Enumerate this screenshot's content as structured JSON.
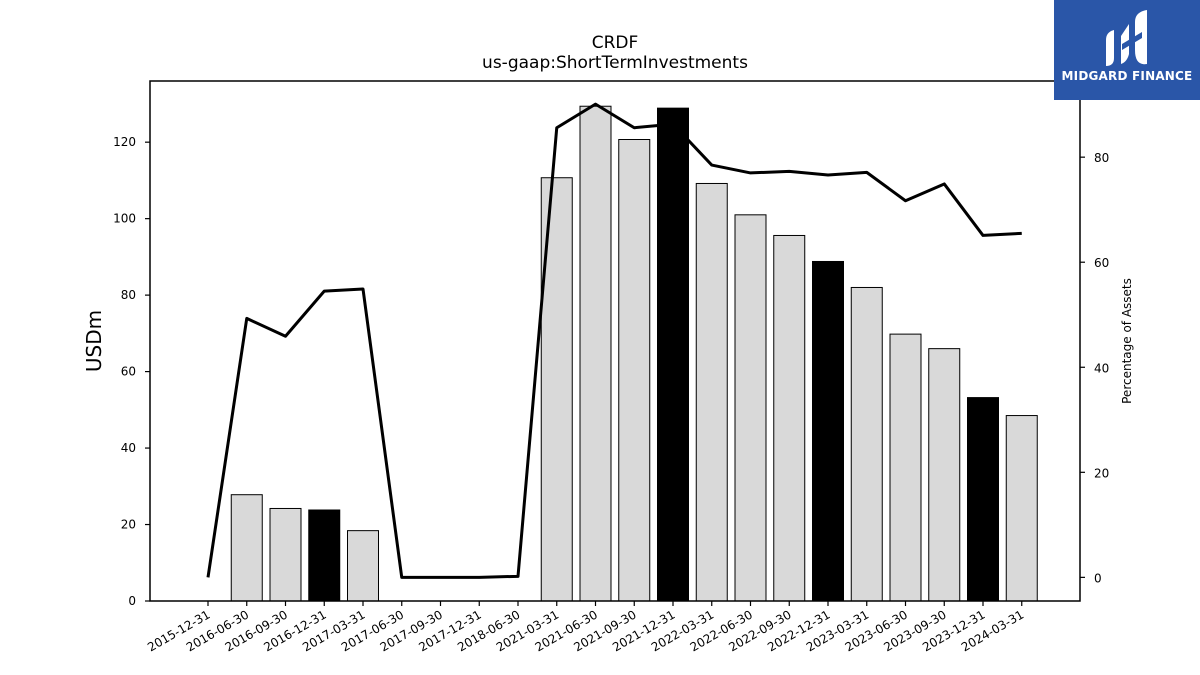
{
  "logo": {
    "text": "MIDGARD FINANCE",
    "background": "#2a56a8"
  },
  "chart_data": {
    "type": "bar",
    "title": "CRDF",
    "subtitle": "us-gaap:ShortTermInvestments",
    "ylabel": "USDm",
    "y2label": "Percentage of Assets",
    "ylim": [
      0,
      136
    ],
    "y2lim": [
      -4.5,
      94.5
    ],
    "y_ticks": [
      0,
      20,
      40,
      60,
      80,
      100,
      120
    ],
    "y2_ticks": [
      0,
      20,
      40,
      60,
      80
    ],
    "categories": [
      "2015-12-31",
      "2016-06-30",
      "2016-09-30",
      "2016-12-31",
      "2017-03-31",
      "2017-06-30",
      "2017-09-30",
      "2017-12-31",
      "2018-06-30",
      "2021-03-31",
      "2021-06-30",
      "2021-09-30",
      "2021-12-31",
      "2022-03-31",
      "2022-06-30",
      "2022-09-30",
      "2022-12-31",
      "2023-03-31",
      "2023-06-30",
      "2023-09-30",
      "2023-12-31",
      "2024-03-31"
    ],
    "series": [
      {
        "kind": "bar",
        "axis": "left",
        "values": [
          0,
          27.8,
          24.2,
          23.8,
          18.4,
          0,
          0,
          0,
          0,
          110.7,
          129.4,
          120.7,
          128.9,
          109.2,
          101.0,
          95.6,
          88.8,
          82.0,
          69.8,
          66.0,
          53.2,
          48.5
        ],
        "colors": [
          "#d9d9d9",
          "#d9d9d9",
          "#d9d9d9",
          "#000000",
          "#d9d9d9",
          "#d9d9d9",
          "#d9d9d9",
          "#d9d9d9",
          "#d9d9d9",
          "#d9d9d9",
          "#d9d9d9",
          "#d9d9d9",
          "#000000",
          "#d9d9d9",
          "#d9d9d9",
          "#d9d9d9",
          "#000000",
          "#d9d9d9",
          "#d9d9d9",
          "#d9d9d9",
          "#000000",
          "#d9d9d9"
        ]
      },
      {
        "kind": "line",
        "axis": "right",
        "values": [
          0.0,
          49.3,
          45.9,
          54.5,
          54.9,
          0.0,
          0.0,
          0.0,
          0.2,
          85.6,
          90.1,
          85.6,
          86.3,
          78.5,
          77.0,
          77.3,
          76.6,
          77.1,
          71.7,
          74.9,
          65.1,
          65.5
        ],
        "color": "#000000"
      }
    ],
    "grid": false,
    "legend": "none"
  }
}
